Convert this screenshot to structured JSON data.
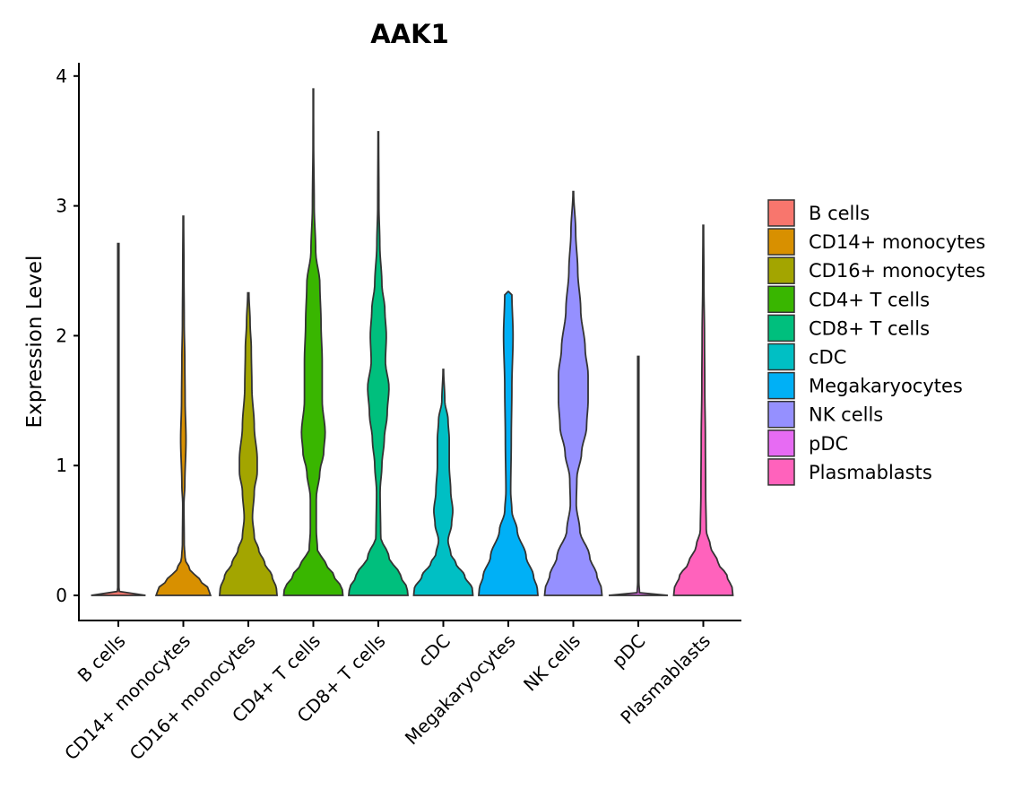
{
  "chart_data": {
    "type": "violin",
    "title": "AAK1",
    "xlabel": "",
    "ylabel": "Expression Level",
    "ylim": [
      -0.2,
      4.1
    ],
    "yticks": [
      0,
      1,
      2,
      3,
      4
    ],
    "ytick_labels": [
      "0",
      "1",
      "2",
      "3",
      "4"
    ],
    "categories": [
      "B cells",
      "CD14+ monocytes",
      "CD16+ monocytes",
      "CD4+ T cells",
      "CD8+ T cells",
      "cDC",
      "Megakaryocytes",
      "NK cells",
      "pDC",
      "Plasmablasts"
    ],
    "legend_position": "right",
    "grid": false,
    "series": [
      {
        "name": "B cells",
        "color": "#F8766D",
        "max": 2.71,
        "profile": [
          [
            0,
            0.92
          ],
          [
            0.01,
            0.5
          ],
          [
            0.02,
            0.04
          ],
          [
            0.05,
            0.02
          ],
          [
            0.3,
            0.02
          ],
          [
            1,
            0.02
          ],
          [
            2,
            0.02
          ],
          [
            2.71,
            0.02
          ]
        ]
      },
      {
        "name": "CD14+ monocytes",
        "color": "#D89000",
        "max": 2.92,
        "profile": [
          [
            0,
            0.92
          ],
          [
            0.05,
            0.85
          ],
          [
            0.12,
            0.55
          ],
          [
            0.2,
            0.22
          ],
          [
            0.28,
            0.06
          ],
          [
            0.4,
            0.03
          ],
          [
            0.7,
            0.02
          ],
          [
            0.85,
            0.05
          ],
          [
            1.2,
            0.09
          ],
          [
            1.5,
            0.06
          ],
          [
            1.8,
            0.05
          ],
          [
            2.1,
            0.03
          ],
          [
            2.5,
            0.02
          ],
          [
            2.92,
            0.01
          ]
        ]
      },
      {
        "name": "CD16+ monocytes",
        "color": "#A3A500",
        "max": 2.33,
        "profile": [
          [
            0,
            0.97
          ],
          [
            0.05,
            0.95
          ],
          [
            0.15,
            0.8
          ],
          [
            0.25,
            0.55
          ],
          [
            0.35,
            0.35
          ],
          [
            0.45,
            0.2
          ],
          [
            0.6,
            0.14
          ],
          [
            0.8,
            0.2
          ],
          [
            0.95,
            0.3
          ],
          [
            1.05,
            0.3
          ],
          [
            1.3,
            0.2
          ],
          [
            1.6,
            0.12
          ],
          [
            1.9,
            0.1
          ],
          [
            2.1,
            0.06
          ],
          [
            2.33,
            0.02
          ]
        ]
      },
      {
        "name": "CD4+ T cells",
        "color": "#39B600",
        "max": 3.9,
        "profile": [
          [
            0,
            1.0
          ],
          [
            0.05,
            0.98
          ],
          [
            0.15,
            0.7
          ],
          [
            0.25,
            0.4
          ],
          [
            0.35,
            0.14
          ],
          [
            0.5,
            0.1
          ],
          [
            0.75,
            0.1
          ],
          [
            0.95,
            0.22
          ],
          [
            1.1,
            0.35
          ],
          [
            1.25,
            0.4
          ],
          [
            1.5,
            0.3
          ],
          [
            1.8,
            0.3
          ],
          [
            2.1,
            0.26
          ],
          [
            2.4,
            0.22
          ],
          [
            2.65,
            0.08
          ],
          [
            3.0,
            0.03
          ],
          [
            3.5,
            0.01
          ],
          [
            3.9,
            0.005
          ]
        ]
      },
      {
        "name": "CD8+ T cells",
        "color": "#00BF7D",
        "max": 3.57,
        "profile": [
          [
            0,
            1.0
          ],
          [
            0.05,
            0.98
          ],
          [
            0.15,
            0.75
          ],
          [
            0.3,
            0.35
          ],
          [
            0.45,
            0.08
          ],
          [
            0.8,
            0.06
          ],
          [
            1.0,
            0.12
          ],
          [
            1.2,
            0.2
          ],
          [
            1.4,
            0.3
          ],
          [
            1.6,
            0.36
          ],
          [
            1.8,
            0.24
          ],
          [
            2.0,
            0.27
          ],
          [
            2.2,
            0.22
          ],
          [
            2.4,
            0.12
          ],
          [
            2.7,
            0.05
          ],
          [
            3.0,
            0.02
          ],
          [
            3.57,
            0.01
          ]
        ]
      },
      {
        "name": "cDC",
        "color": "#00BFC4",
        "max": 1.74,
        "profile": [
          [
            0,
            1.0
          ],
          [
            0.05,
            0.98
          ],
          [
            0.15,
            0.72
          ],
          [
            0.25,
            0.42
          ],
          [
            0.32,
            0.25
          ],
          [
            0.42,
            0.16
          ],
          [
            0.55,
            0.28
          ],
          [
            0.65,
            0.32
          ],
          [
            0.8,
            0.25
          ],
          [
            1.0,
            0.2
          ],
          [
            1.2,
            0.2
          ],
          [
            1.35,
            0.16
          ],
          [
            1.5,
            0.05
          ],
          [
            1.74,
            0.01
          ]
        ]
      },
      {
        "name": "Megakaryocytes",
        "color": "#00B0F6",
        "max": 2.34,
        "profile": [
          [
            0,
            1.0
          ],
          [
            0.05,
            0.98
          ],
          [
            0.15,
            0.85
          ],
          [
            0.3,
            0.6
          ],
          [
            0.5,
            0.3
          ],
          [
            0.65,
            0.12
          ],
          [
            0.8,
            0.08
          ],
          [
            1.2,
            0.1
          ],
          [
            1.6,
            0.12
          ],
          [
            2.0,
            0.16
          ],
          [
            2.33,
            0.12
          ],
          [
            2.34,
            0.0
          ]
        ]
      },
      {
        "name": "NK cells",
        "color": "#9590FF",
        "max": 3.11,
        "profile": [
          [
            0,
            0.97
          ],
          [
            0.05,
            0.95
          ],
          [
            0.15,
            0.8
          ],
          [
            0.3,
            0.55
          ],
          [
            0.5,
            0.22
          ],
          [
            0.7,
            0.1
          ],
          [
            0.9,
            0.12
          ],
          [
            1.1,
            0.28
          ],
          [
            1.3,
            0.45
          ],
          [
            1.5,
            0.5
          ],
          [
            1.7,
            0.5
          ],
          [
            1.9,
            0.4
          ],
          [
            2.2,
            0.25
          ],
          [
            2.5,
            0.15
          ],
          [
            2.8,
            0.08
          ],
          [
            3.11,
            0.01
          ]
        ]
      },
      {
        "name": "pDC",
        "color": "#E76BF3",
        "max": 1.84,
        "profile": [
          [
            0,
            1.0
          ],
          [
            0.01,
            0.5
          ],
          [
            0.02,
            0.04
          ],
          [
            0.1,
            0.02
          ],
          [
            1.0,
            0.02
          ],
          [
            1.84,
            0.02
          ]
        ]
      },
      {
        "name": "Plasmablasts",
        "color": "#FF62BC",
        "max": 2.85,
        "profile": [
          [
            0,
            1.0
          ],
          [
            0.05,
            0.98
          ],
          [
            0.15,
            0.8
          ],
          [
            0.25,
            0.5
          ],
          [
            0.38,
            0.24
          ],
          [
            0.5,
            0.1
          ],
          [
            0.8,
            0.08
          ],
          [
            1.2,
            0.07
          ],
          [
            1.6,
            0.05
          ],
          [
            2.0,
            0.04
          ],
          [
            2.4,
            0.02
          ],
          [
            2.85,
            0.01
          ]
        ]
      }
    ]
  }
}
